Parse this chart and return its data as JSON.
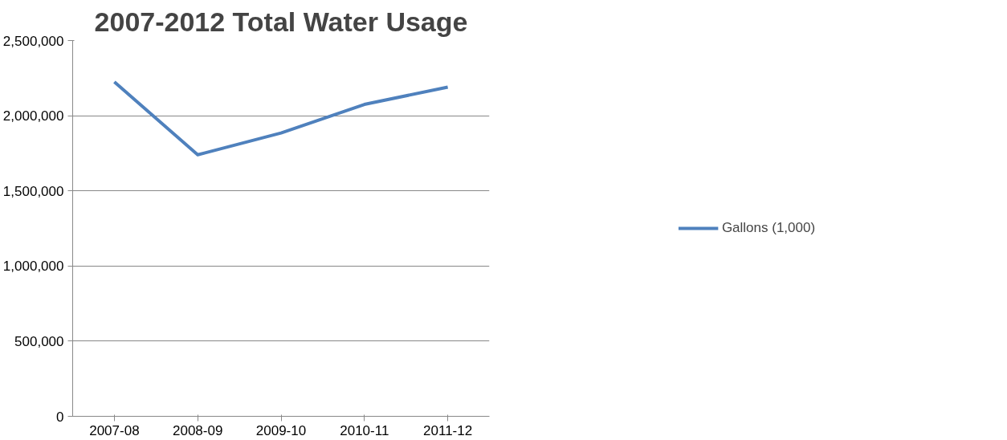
{
  "chart_data": {
    "type": "line",
    "title": "2007-2012 Total Water Usage",
    "categories": [
      "2007-08",
      "2008-09",
      "2009-10",
      "2010-11",
      "2011-12"
    ],
    "series": [
      {
        "name": "Gallons (1,000)",
        "color": "#4f81bd",
        "values": [
          2225000,
          1740000,
          1885000,
          2075000,
          2190000
        ]
      }
    ],
    "ylim": [
      0,
      2500000
    ],
    "yticks": [
      {
        "value": 0,
        "label": "0"
      },
      {
        "value": 500000,
        "label": "500,000"
      },
      {
        "value": 1000000,
        "label": "1,000,000"
      },
      {
        "value": 1500000,
        "label": "1,500,000"
      },
      {
        "value": 2000000,
        "label": "2,000,000"
      },
      {
        "value": 2500000,
        "label": "2,500,000"
      }
    ],
    "grid": "y",
    "legend": "right",
    "marker": "none",
    "line_style": "solid"
  }
}
